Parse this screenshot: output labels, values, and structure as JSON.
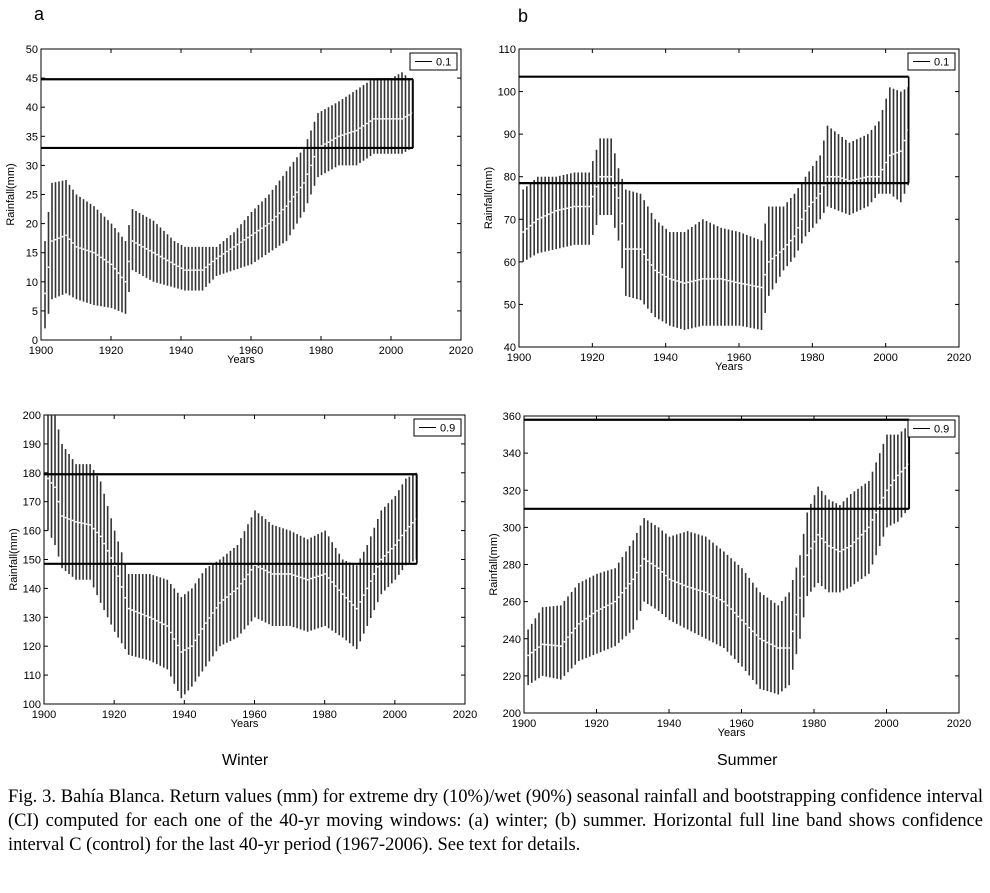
{
  "panel_labels": {
    "a": "a",
    "b": "b"
  },
  "season_labels": {
    "winter": "Winter",
    "summer": "Summer"
  },
  "caption": "Fig. 3. Bahía Blanca. Return values (mm) for extreme dry (10%)/wet (90%) seasonal rainfall and bootstrapping confidence interval (CI) computed for each one of the 40-yr moving windows: (a) winter; (b) summer. Horizontal full line band shows confidence interval C (control) for the last 40-yr period (1967-2006). See text for details.",
  "chart_data": [
    {
      "id": "winter-dry",
      "type": "errorbar",
      "panel": "a",
      "season": "Winter",
      "xlabel": "Years",
      "ylabel": "Rainfall(mm)",
      "xlim": [
        1900,
        2020
      ],
      "ylim": [
        0,
        50
      ],
      "xticks": [
        1900,
        1920,
        1940,
        1960,
        1980,
        2000,
        2020
      ],
      "yticks": [
        0,
        5,
        10,
        15,
        20,
        25,
        30,
        35,
        40,
        45,
        50
      ],
      "legend": "0.1",
      "control_band": [
        33,
        44.8
      ],
      "x_start": 1901,
      "x_end": 2006,
      "anchors": [
        [
          1901,
          8,
          2,
          17
        ],
        [
          1903,
          17,
          7,
          27
        ],
        [
          1907,
          18,
          8,
          27.5
        ],
        [
          1910,
          16,
          7,
          25
        ],
        [
          1915,
          15,
          6,
          23
        ],
        [
          1920,
          13,
          5.5,
          20
        ],
        [
          1924,
          10,
          4.5,
          17
        ],
        [
          1926,
          17,
          12,
          22.5
        ],
        [
          1932,
          15,
          10,
          20.5
        ],
        [
          1938,
          13,
          9,
          17
        ],
        [
          1941,
          12,
          8.5,
          16
        ],
        [
          1946,
          12,
          8.5,
          16
        ],
        [
          1950,
          14,
          11,
          16
        ],
        [
          1955,
          16,
          12,
          18.5
        ],
        [
          1960,
          18,
          13,
          22
        ],
        [
          1965,
          20,
          15,
          25
        ],
        [
          1970,
          23,
          17,
          29
        ],
        [
          1975,
          27,
          22,
          33
        ],
        [
          1979,
          33,
          28,
          39
        ],
        [
          1985,
          35,
          30,
          41
        ],
        [
          1990,
          36,
          30,
          43
        ],
        [
          1995,
          38,
          32,
          45
        ],
        [
          2000,
          38,
          32,
          45
        ],
        [
          2003,
          38,
          32,
          46
        ],
        [
          2006,
          39,
          33,
          44.5
        ]
      ]
    },
    {
      "id": "summer-dry",
      "type": "errorbar",
      "panel": "b",
      "season": "Summer",
      "xlabel": "Years",
      "ylabel": "Rainfall(mm)",
      "xlim": [
        1900,
        2020
      ],
      "ylim": [
        40,
        110
      ],
      "xticks": [
        1900,
        1920,
        1940,
        1960,
        1980,
        2000,
        2020
      ],
      "yticks": [
        40,
        50,
        60,
        70,
        80,
        90,
        100,
        110
      ],
      "legend": "0.1",
      "control_band": [
        78.5,
        103.5
      ],
      "x_start": 1901,
      "x_end": 2006,
      "anchors": [
        [
          1901,
          67,
          60,
          77
        ],
        [
          1905,
          70,
          62,
          80
        ],
        [
          1910,
          72,
          63,
          80
        ],
        [
          1915,
          73,
          64,
          81
        ],
        [
          1919,
          73,
          64,
          81
        ],
        [
          1922,
          80,
          71,
          89
        ],
        [
          1925,
          80,
          71,
          89
        ],
        [
          1927,
          75,
          65,
          82
        ],
        [
          1929,
          63,
          52,
          77
        ],
        [
          1933,
          63,
          51,
          76
        ],
        [
          1937,
          58,
          47,
          70
        ],
        [
          1941,
          56,
          45,
          67
        ],
        [
          1945,
          55,
          44,
          67
        ],
        [
          1950,
          56,
          45,
          70
        ],
        [
          1955,
          56,
          45,
          68
        ],
        [
          1960,
          55,
          45,
          67
        ],
        [
          1966,
          54,
          44,
          65
        ],
        [
          1968,
          60,
          52,
          73
        ],
        [
          1972,
          63,
          58,
          73
        ],
        [
          1975,
          66,
          61,
          76
        ],
        [
          1978,
          72,
          66,
          80
        ],
        [
          1982,
          76,
          70,
          85
        ],
        [
          1984,
          80,
          73,
          92
        ],
        [
          1987,
          80,
          72,
          90
        ],
        [
          1990,
          79,
          71,
          88
        ],
        [
          1995,
          80,
          73,
          90
        ],
        [
          1998,
          80,
          76,
          93
        ],
        [
          2001,
          85,
          76,
          101
        ],
        [
          2004,
          86,
          74,
          100
        ],
        [
          2006,
          91,
          78,
          101
        ]
      ]
    },
    {
      "id": "winter-wet",
      "type": "errorbar",
      "panel": "a",
      "season": "Winter",
      "xlabel": "Years",
      "ylabel": "Rainfall(mm)",
      "xlim": [
        1900,
        2020
      ],
      "ylim": [
        100,
        200
      ],
      "xticks": [
        1900,
        1920,
        1940,
        1960,
        1980,
        2000,
        2020
      ],
      "yticks": [
        100,
        110,
        120,
        130,
        140,
        150,
        160,
        170,
        180,
        190,
        200
      ],
      "legend": "0.9",
      "control_band": [
        148.5,
        179.5
      ],
      "x_start": 1901,
      "x_end": 2006,
      "anchors": [
        [
          1901,
          178,
          160,
          200
        ],
        [
          1903,
          175,
          155,
          200
        ],
        [
          1905,
          165,
          147,
          190
        ],
        [
          1909,
          163,
          143,
          183
        ],
        [
          1913,
          162,
          143,
          183
        ],
        [
          1916,
          158,
          135,
          177
        ],
        [
          1920,
          148,
          125,
          160
        ],
        [
          1924,
          133,
          117,
          145
        ],
        [
          1930,
          130,
          115,
          145
        ],
        [
          1935,
          127,
          112,
          143
        ],
        [
          1939,
          118,
          102,
          137
        ],
        [
          1942,
          120,
          106,
          140
        ],
        [
          1946,
          128,
          113,
          147
        ],
        [
          1950,
          135,
          120,
          150
        ],
        [
          1955,
          140,
          123,
          155
        ],
        [
          1960,
          148,
          130,
          167
        ],
        [
          1965,
          145,
          127,
          162
        ],
        [
          1970,
          145,
          127,
          160
        ],
        [
          1975,
          143,
          125,
          157
        ],
        [
          1980,
          145,
          127,
          160
        ],
        [
          1985,
          138,
          123,
          150
        ],
        [
          1989,
          133,
          119,
          148
        ],
        [
          1992,
          140,
          127,
          155
        ],
        [
          1996,
          150,
          138,
          167
        ],
        [
          2000,
          155,
          143,
          172
        ],
        [
          2003,
          160,
          148,
          178
        ],
        [
          2006,
          164,
          150,
          180
        ]
      ]
    },
    {
      "id": "summer-wet",
      "type": "errorbar",
      "panel": "b",
      "season": "Summer",
      "xlabel": "Years",
      "ylabel": "Rainfall(mm)",
      "xlim": [
        1900,
        2020
      ],
      "ylim": [
        200,
        360
      ],
      "xticks": [
        1900,
        1920,
        1940,
        1960,
        1980,
        2000,
        2020
      ],
      "yticks": [
        200,
        220,
        240,
        260,
        280,
        300,
        320,
        340,
        360
      ],
      "legend": "0.9",
      "control_band": [
        310,
        358
      ],
      "x_start": 1901,
      "x_end": 2006,
      "anchors": [
        [
          1901,
          231,
          215,
          245
        ],
        [
          1905,
          237,
          220,
          257
        ],
        [
          1910,
          236,
          218,
          258
        ],
        [
          1915,
          248,
          228,
          270
        ],
        [
          1920,
          255,
          232,
          275
        ],
        [
          1925,
          260,
          236,
          278
        ],
        [
          1930,
          272,
          245,
          293
        ],
        [
          1933,
          283,
          260,
          305
        ],
        [
          1937,
          278,
          255,
          300
        ],
        [
          1940,
          272,
          250,
          295
        ],
        [
          1945,
          268,
          245,
          298
        ],
        [
          1950,
          265,
          240,
          295
        ],
        [
          1955,
          260,
          235,
          287
        ],
        [
          1960,
          250,
          225,
          278
        ],
        [
          1965,
          240,
          213,
          265
        ],
        [
          1970,
          235,
          210,
          258
        ],
        [
          1973,
          235,
          215,
          265
        ],
        [
          1976,
          262,
          240,
          285
        ],
        [
          1978,
          285,
          263,
          308
        ],
        [
          1981,
          296,
          270,
          322
        ],
        [
          1984,
          290,
          265,
          315
        ],
        [
          1987,
          287,
          265,
          312
        ],
        [
          1990,
          290,
          268,
          318
        ],
        [
          1995,
          300,
          275,
          325
        ],
        [
          2000,
          320,
          300,
          350
        ],
        [
          2003,
          328,
          303,
          350
        ],
        [
          2006,
          334,
          310,
          355
        ]
      ]
    }
  ]
}
